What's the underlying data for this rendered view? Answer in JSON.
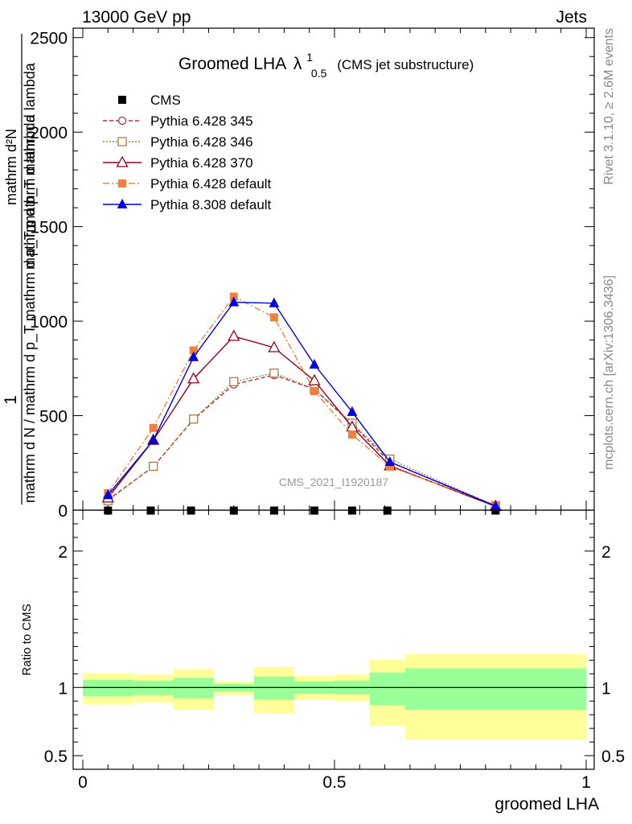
{
  "header": {
    "left": "13000 GeV pp",
    "right": "Jets"
  },
  "side_labels": {
    "rivet": "Rivet 3.1.10, ≥ 2.6M events",
    "mcplots": "mcplots.cern.ch [arXiv:1306.3436]"
  },
  "chart_data": [
    {
      "type": "line",
      "title": "Groomed LHA",
      "title_symbol": "λ",
      "title_superscript": "1",
      "title_subscript": "0.5",
      "subtitle": "(CMS jet substructure)",
      "watermark": "CMS_2021_I1920187",
      "ylabel": {
        "numerator": "1",
        "denominator": "mathrm d N / mathrm d p_T mathrm d p_T mathrm d lambda",
        "top_part": "mathrm d²N",
        "bottom_part": "mathrm d p_T mathrm d lambda"
      },
      "xlim": [
        0,
        1
      ],
      "ylim": [
        0,
        2550
      ],
      "yticks": [
        0,
        500,
        1000,
        1500,
        2000,
        2500
      ],
      "ytick_labels": [
        "0",
        "500",
        "1000",
        "1500",
        "2000",
        "2500"
      ],
      "xticks": [
        0,
        0.5,
        1
      ],
      "xtick_labels": [
        "0",
        "0.5",
        "1"
      ],
      "grid": false,
      "legend_position": "top-left",
      "series": [
        {
          "name": "CMS",
          "color": "#000000",
          "marker": "filled-square",
          "x": [
            0.05,
            0.135,
            0.215,
            0.3,
            0.38,
            0.46,
            0.535,
            0.605,
            0.82
          ],
          "y": [
            0,
            0,
            0,
            0,
            0,
            0,
            0,
            0,
            0
          ]
        },
        {
          "name": "Pythia 6.428 345",
          "color": "#b03040",
          "marker": "open-circle",
          "dash": "5,3",
          "x": [
            0.05,
            0.14,
            0.22,
            0.3,
            0.38,
            0.46,
            0.535,
            0.61,
            0.82
          ],
          "y": [
            55,
            230,
            480,
            665,
            715,
            640,
            455,
            255,
            20
          ]
        },
        {
          "name": "Pythia 6.428 346",
          "color": "#a08040",
          "marker": "open-square",
          "dash": "2,2",
          "x": [
            0.05,
            0.14,
            0.22,
            0.3,
            0.38,
            0.46,
            0.535,
            0.61,
            0.82
          ],
          "y": [
            50,
            232,
            482,
            680,
            725,
            642,
            460,
            270,
            22
          ]
        },
        {
          "name": "Pythia 6.428 370",
          "color": "#900020",
          "marker": "open-triangle",
          "dash": "",
          "x": [
            0.05,
            0.14,
            0.22,
            0.3,
            0.38,
            0.46,
            0.535,
            0.61,
            0.82
          ],
          "y": [
            65,
            370,
            695,
            920,
            860,
            685,
            440,
            235,
            20
          ]
        },
        {
          "name": "Pythia 6.428 default",
          "color": "#f08040",
          "marker": "filled-square",
          "dash": "8,3,2,3",
          "x": [
            0.05,
            0.14,
            0.22,
            0.3,
            0.38,
            0.46,
            0.535,
            0.61,
            0.82
          ],
          "y": [
            90,
            435,
            845,
            1130,
            1020,
            630,
            400,
            230,
            28
          ]
        },
        {
          "name": "Pythia 8.308 default",
          "color": "#0000e0",
          "marker": "filled-triangle",
          "dash": "",
          "x": [
            0.05,
            0.14,
            0.22,
            0.3,
            0.38,
            0.46,
            0.535,
            0.61,
            0.82
          ],
          "y": [
            80,
            370,
            810,
            1100,
            1095,
            770,
            520,
            255,
            22
          ]
        }
      ]
    },
    {
      "type": "area",
      "ylabel": "Ratio to CMS",
      "xlabel": "groomed LHA",
      "xlim": [
        0,
        1
      ],
      "ylim": [
        0.4,
        2.3
      ],
      "yticks": [
        0.5,
        1,
        2
      ],
      "ytick_labels": [
        "0.5",
        "1",
        "2"
      ],
      "xticks": [
        0,
        0.5,
        1
      ],
      "xtick_labels": [
        "0",
        "0.5",
        "1"
      ],
      "reference_line": 1,
      "band_colors": {
        "outer": "#ffff99",
        "inner": "#99ff99"
      },
      "bins": [
        {
          "x": [
            0.0,
            0.1
          ],
          "outer": [
            0.875,
            1.105
          ],
          "inner": [
            0.935,
            1.055
          ]
        },
        {
          "x": [
            0.1,
            0.18
          ],
          "outer": [
            0.89,
            1.095
          ],
          "inner": [
            0.945,
            1.05
          ]
        },
        {
          "x": [
            0.18,
            0.26
          ],
          "outer": [
            0.835,
            1.135
          ],
          "inner": [
            0.92,
            1.07
          ]
        },
        {
          "x": [
            0.26,
            0.34
          ],
          "outer": [
            0.945,
            1.045
          ],
          "inner": [
            0.97,
            1.025
          ]
        },
        {
          "x": [
            0.34,
            0.42
          ],
          "outer": [
            0.81,
            1.15
          ],
          "inner": [
            0.91,
            1.08
          ]
        },
        {
          "x": [
            0.42,
            0.5
          ],
          "outer": [
            0.91,
            1.085
          ],
          "inner": [
            0.955,
            1.045
          ]
        },
        {
          "x": [
            0.5,
            0.57
          ],
          "outer": [
            0.9,
            1.095
          ],
          "inner": [
            0.95,
            1.05
          ]
        },
        {
          "x": [
            0.57,
            0.64
          ],
          "outer": [
            0.72,
            1.205
          ],
          "inner": [
            0.87,
            1.11
          ]
        },
        {
          "x": [
            0.64,
            1.0
          ],
          "outer": [
            0.62,
            1.245
          ],
          "inner": [
            0.835,
            1.14
          ]
        }
      ]
    }
  ]
}
